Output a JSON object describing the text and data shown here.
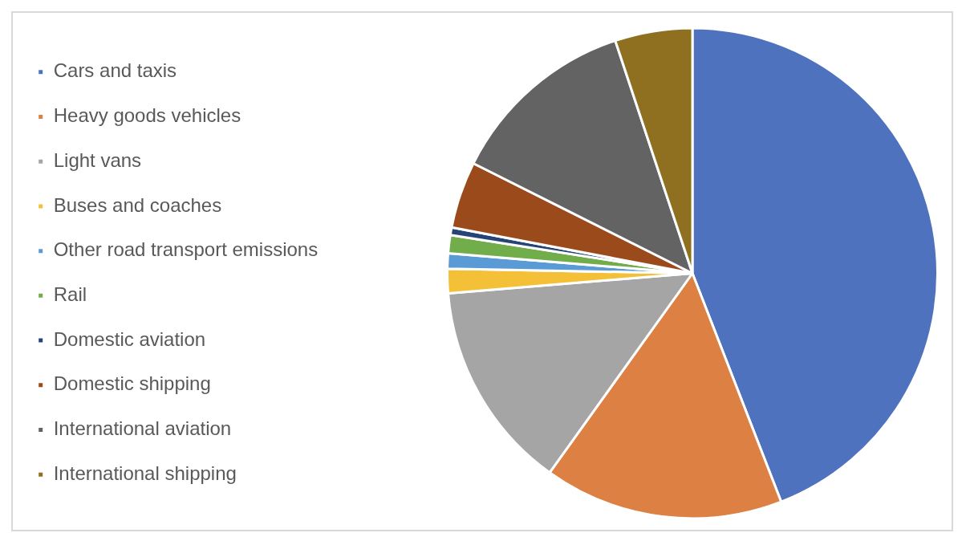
{
  "chart_data": {
    "type": "pie",
    "categories": [
      "Cars and taxis",
      "Heavy goods vehicles",
      "Light vans",
      "Buses and coaches",
      "Other road transport emissions",
      "Rail",
      "Domestic aviation",
      "Domestic shipping",
      "International aviation",
      "International shipping"
    ],
    "values": [
      44.1,
      15.8,
      13.8,
      1.6,
      1.0,
      1.2,
      0.5,
      4.4,
      12.5,
      5.1
    ],
    "colors": [
      "#4f72bf",
      "#dd8043",
      "#a5a5a5",
      "#f4c037",
      "#5b9bd5",
      "#72ad4c",
      "#264478",
      "#9b4a1c",
      "#636363",
      "#8e7020"
    ],
    "legend": "left"
  }
}
